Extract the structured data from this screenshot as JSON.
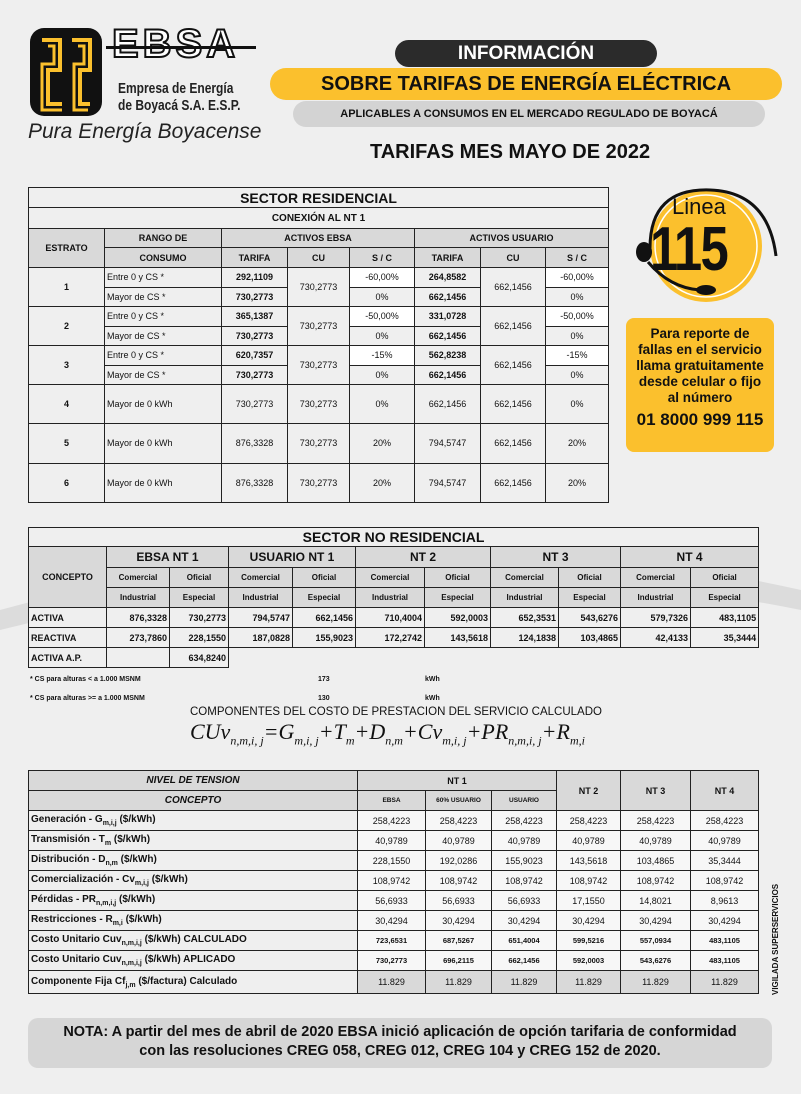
{
  "header": {
    "brand": "EBSA",
    "company_line1": "Empresa de Energía",
    "company_line2": "de Boyacá S.A. E.S.P.",
    "slogan": "Pura Energía Boyacense",
    "info": "INFORMACIÓN",
    "title": "SOBRE TARIFAS DE ENERGÍA ELÉCTRICA",
    "subtitle": "APLICABLES A CONSUMOS EN EL MERCADO REGULADO DE BOYACÁ",
    "month": "TARIFAS MES MAYO DE 2022"
  },
  "colors": {
    "yellow": "#fbc02d",
    "dark": "#2b2b2b",
    "gray": "#d9d9d9"
  },
  "hotline": {
    "label": "Linea",
    "number": "115",
    "text": "Para reporte de fallas en el servicio llama gratuitamente desde celular o fijo al número",
    "phone": "01 8000 999 115",
    "icon": "headset-icon"
  },
  "residential": {
    "title": "SECTOR RESIDENCIAL",
    "subtitle": "CONEXIÓN AL  NT  1",
    "headers": {
      "estrato": "ESTRATO",
      "rango1": "RANGO DE",
      "rango2": "CONSUMO",
      "ebsa": "ACTIVOS EBSA",
      "usuario": "ACTIVOS USUARIO",
      "tarifa": "TARIFA",
      "cu": "CU",
      "sc": "S / C"
    },
    "rows": [
      {
        "estrato": "1",
        "cu_ebsa": "730,2773",
        "cu_usuario": "662,1456",
        "ranges": [
          {
            "rango": "Entre 0  y  CS *",
            "t_e": "292,1109",
            "sc_e": "-60,00%",
            "t_u": "264,8582",
            "sc_u": "-60,00%"
          },
          {
            "rango": "Mayor de  CS *",
            "t_e": "730,2773",
            "sc_e": "0%",
            "t_u": "662,1456",
            "sc_u": "0%"
          }
        ]
      },
      {
        "estrato": "2",
        "cu_ebsa": "730,2773",
        "cu_usuario": "662,1456",
        "ranges": [
          {
            "rango": "Entre 0  y  CS *",
            "t_e": "365,1387",
            "sc_e": "-50,00%",
            "t_u": "331,0728",
            "sc_u": "-50,00%"
          },
          {
            "rango": "Mayor de  CS *",
            "t_e": "730,2773",
            "sc_e": "0%",
            "t_u": "662,1456",
            "sc_u": "0%"
          }
        ]
      },
      {
        "estrato": "3",
        "cu_ebsa": "730,2773",
        "cu_usuario": "662,1456",
        "ranges": [
          {
            "rango": "Entre 0  y  CS *",
            "t_e": "620,7357",
            "sc_e": "-15%",
            "t_u": "562,8238",
            "sc_u": "-15%"
          },
          {
            "rango": "Mayor de  CS *",
            "t_e": "730,2773",
            "sc_e": "0%",
            "t_u": "662,1456",
            "sc_u": "0%"
          }
        ]
      },
      {
        "estrato": "4",
        "cu_ebsa": "730,2773",
        "cu_usuario": "662,1456",
        "ranges": [
          {
            "rango": "Mayor de 0 kWh",
            "t_e": "730,2773",
            "sc_e": "0%",
            "t_u": "662,1456",
            "sc_u": "0%"
          }
        ]
      },
      {
        "estrato": "5",
        "cu_ebsa": "730,2773",
        "cu_usuario": "662,1456",
        "ranges": [
          {
            "rango": "Mayor de 0 kWh",
            "t_e": "876,3328",
            "sc_e": "20%",
            "t_u": "794,5747",
            "sc_u": "20%"
          }
        ]
      },
      {
        "estrato": "6",
        "cu_ebsa": "730,2773",
        "cu_usuario": "662,1456",
        "ranges": [
          {
            "rango": "Mayor de 0 kWh",
            "t_e": "876,3328",
            "sc_e": "20%",
            "t_u": "794,5747",
            "sc_u": "20%"
          }
        ]
      }
    ]
  },
  "nonresidential": {
    "title": "SECTOR NO RESIDENCIAL",
    "concepto": "CONCEPTO",
    "groups": [
      "EBSA NT 1",
      "USUARIO NT 1",
      "NT  2",
      "NT 3",
      "NT  4"
    ],
    "sub1": [
      "Comercial",
      "Oficial"
    ],
    "sub2": [
      "Industrial",
      "Especial"
    ],
    "rows": [
      {
        "label": "ACTIVA",
        "values": [
          "876,3328",
          "730,2773",
          "794,5747",
          "662,1456",
          "710,4004",
          "592,0003",
          "652,3531",
          "543,6276",
          "579,7326",
          "483,1105"
        ]
      },
      {
        "label": "REACTIVA",
        "values": [
          "273,7860",
          "228,1550",
          "187,0828",
          "155,9023",
          "172,2742",
          "143,5618",
          "124,1838",
          "103,4865",
          "42,4133",
          "35,3444"
        ]
      },
      {
        "label": "ACTIVA A.P.",
        "values": [
          "",
          "634,8240"
        ]
      }
    ]
  },
  "notes": [
    {
      "text": "* CS para alturas < a 1.000 MSNM",
      "value": "173",
      "unit": "kWh"
    },
    {
      "text": "* CS para alturas >= a 1.000 MSNM",
      "value": "130",
      "unit": "kWh"
    }
  ],
  "formula": {
    "title": "COMPONENTES DEL COSTO DE PRESTACION DEL SERVICIO CALCULADO",
    "parts": [
      [
        "CUv",
        "n,m,i, j"
      ],
      [
        "=G",
        "m,i, j"
      ],
      [
        "+T",
        "m"
      ],
      [
        "+D",
        "n,m"
      ],
      [
        "+Cv",
        "m,i, j"
      ],
      [
        "+PR",
        "n,m,i, j"
      ],
      [
        "+R",
        "m,i"
      ]
    ]
  },
  "costs": {
    "nivel": "NIVEL DE TENSION",
    "concepto": "CONCEPTO",
    "nt1": "NT 1",
    "nt1_sub": [
      "EBSA",
      "60% USUARIO",
      "USUARIO"
    ],
    "others": [
      "NT 2",
      "NT 3",
      "NT 4"
    ],
    "rows": [
      {
        "label": "Generación -    G",
        "sub": "m,i,j",
        "suffix": " ($/kWh)",
        "values": [
          "258,4223",
          "258,4223",
          "258,4223",
          "258,4223",
          "258,4223",
          "258,4223"
        ]
      },
      {
        "label": "Transmisión - T",
        "sub": "m",
        "suffix": " ($/kWh)",
        "values": [
          "40,9789",
          "40,9789",
          "40,9789",
          "40,9789",
          "40,9789",
          "40,9789"
        ]
      },
      {
        "label": "Distribución -  D",
        "sub": "n,m",
        "suffix": "  ($/kWh)",
        "values": [
          "228,1550",
          "192,0286",
          "155,9023",
          "143,5618",
          "103,4865",
          "35,3444"
        ]
      },
      {
        "label": "Comercialización - Cv",
        "sub": "m,i,j",
        "suffix": "  ($/kWh)",
        "values": [
          "108,9742",
          "108,9742",
          "108,9742",
          "108,9742",
          "108,9742",
          "108,9742"
        ]
      },
      {
        "label": "Pérdidas -   PR",
        "sub": "n,m,i,j",
        "suffix": " ($/kWh)",
        "values": [
          "56,6933",
          "56,6933",
          "56,6933",
          "17,1550",
          "14,8021",
          "8,9613"
        ]
      },
      {
        "label": "Restricciones -  R",
        "sub": "m,i",
        "suffix": " ($/kWh)",
        "values": [
          "30,4294",
          "30,4294",
          "30,4294",
          "30,4294",
          "30,4294",
          "30,4294"
        ]
      },
      {
        "label": "Costo Unitario      Cuv",
        "sub": "n,m,i,j",
        "suffix": " ($/kWh) CALCULADO",
        "values": [
          "723,6531",
          "687,5267",
          "651,4004",
          "599,5216",
          "557,0934",
          "483,1105"
        ],
        "small": true
      },
      {
        "label": "Costo Unitario      Cuv",
        "sub": "n,m,i,j",
        "suffix": " ($/kWh) APLICADO",
        "values": [
          "730,2773",
          "696,2115",
          "662,1456",
          "592,0003",
          "543,6276",
          "483,1105"
        ],
        "small": true
      },
      {
        "label": "Componente Fija Cf",
        "sub": "j,m",
        "suffix": "        ($/factura) Calculado",
        "values": [
          "11.829",
          "11.829",
          "11.829",
          "11.829",
          "11.829",
          "11.829"
        ],
        "gray": true
      }
    ]
  },
  "vigilada": "VIGILADA SUPERSERVICIOS",
  "nota": "NOTA: A partir del mes de abril de 2020 EBSA inició aplicación de opción tarifaria de conformidad con las resoluciones CREG 058, CREG 012, CREG 104 y CREG 152 de 2020."
}
